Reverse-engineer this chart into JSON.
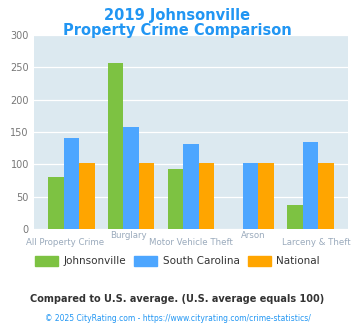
{
  "title_line1": "2019 Johnsonville",
  "title_line2": "Property Crime Comparison",
  "title_color": "#2196F3",
  "johnsonville": [
    80,
    257,
    93,
    0,
    38
  ],
  "south_carolina": [
    140,
    157,
    132,
    103,
    135
  ],
  "national": [
    102,
    102,
    102,
    102,
    102
  ],
  "colors": {
    "johnsonville": "#7DC242",
    "south_carolina": "#4DA6FF",
    "national": "#FFA500"
  },
  "ylim": [
    0,
    300
  ],
  "yticks": [
    0,
    50,
    100,
    150,
    200,
    250,
    300
  ],
  "plot_bg": "#DCE9F0",
  "legend_labels": [
    "Johnsonville",
    "South Carolina",
    "National"
  ],
  "label_top": [
    "",
    "Burglary",
    "",
    "Arson",
    ""
  ],
  "label_bot": [
    "All Property Crime",
    "Motor Vehicle Theft",
    "",
    "Larceny & Theft",
    ""
  ],
  "label_color": "#9AAABC",
  "footnote1": "Compared to U.S. average. (U.S. average equals 100)",
  "footnote2": "© 2025 CityRating.com - https://www.cityrating.com/crime-statistics/",
  "footnote1_color": "#333333",
  "footnote2_color": "#2196F3"
}
